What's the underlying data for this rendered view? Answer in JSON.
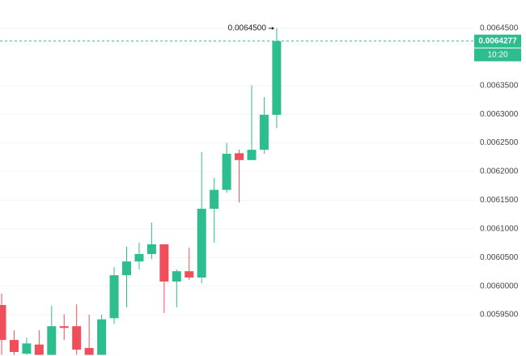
{
  "chart_data": {
    "type": "candlestick",
    "open": [
      0.005967,
      0.005906,
      0.005882,
      0.005898,
      0.00588,
      0.00593,
      0.00593,
      0.005892,
      0.00588,
      0.005944,
      0.006019,
      0.006043,
      0.006056,
      0.006073,
      0.006008,
      0.006026,
      0.006015,
      0.006135,
      0.006168,
      0.006232,
      0.00622,
      0.006238,
      0.006299
    ],
    "high": [
      0.005987,
      0.005923,
      0.00591,
      0.005923,
      0.005966,
      0.005951,
      0.005968,
      0.00595,
      0.00595,
      0.006033,
      0.006069,
      0.006076,
      0.006111,
      0.006073,
      0.006029,
      0.006067,
      0.006234,
      0.006189,
      0.00625,
      0.006238,
      0.00635,
      0.00633,
      0.00645
    ],
    "low": [
      0.00588,
      0.00588,
      0.00588,
      0.00588,
      0.00588,
      0.005906,
      0.00588,
      0.00588,
      0.00588,
      0.005934,
      0.005963,
      0.006029,
      0.006047,
      0.005953,
      0.005963,
      0.006011,
      0.006005,
      0.006076,
      0.006163,
      0.006146,
      0.00622,
      0.006231,
      0.006276
    ],
    "close": [
      0.005906,
      0.005885,
      0.0059,
      0.00588,
      0.00593,
      0.005927,
      0.005889,
      0.00588,
      0.005942,
      0.006019,
      0.006043,
      0.006056,
      0.006073,
      0.006008,
      0.006026,
      0.006015,
      0.006135,
      0.006168,
      0.006231,
      0.00622,
      0.006238,
      0.006299,
      0.0064277
    ],
    "up_color": "#2dbd8f",
    "down_color": "#f04e5a",
    "ylim": [
      0.005878,
      0.0064994
    ],
    "yticks": [
      {
        "value": 0.00595,
        "label": "0.0059500"
      },
      {
        "value": 0.006,
        "label": "0.0060000"
      },
      {
        "value": 0.00605,
        "label": "0.0060500"
      },
      {
        "value": 0.0061,
        "label": "0.0061000"
      },
      {
        "value": 0.00615,
        "label": "0.0061500"
      },
      {
        "value": 0.0062,
        "label": "0.0062000"
      },
      {
        "value": 0.00625,
        "label": "0.0062500"
      },
      {
        "value": 0.0063,
        "label": "0.0063000"
      },
      {
        "value": 0.00635,
        "label": "0.0063500"
      },
      {
        "value": 0.00645,
        "label": "0.0064500"
      }
    ],
    "grid": true,
    "last_price": 0.0064277,
    "countdown": "10:20",
    "high_annotation": {
      "value": 0.00645,
      "label": "0.0064500"
    }
  }
}
